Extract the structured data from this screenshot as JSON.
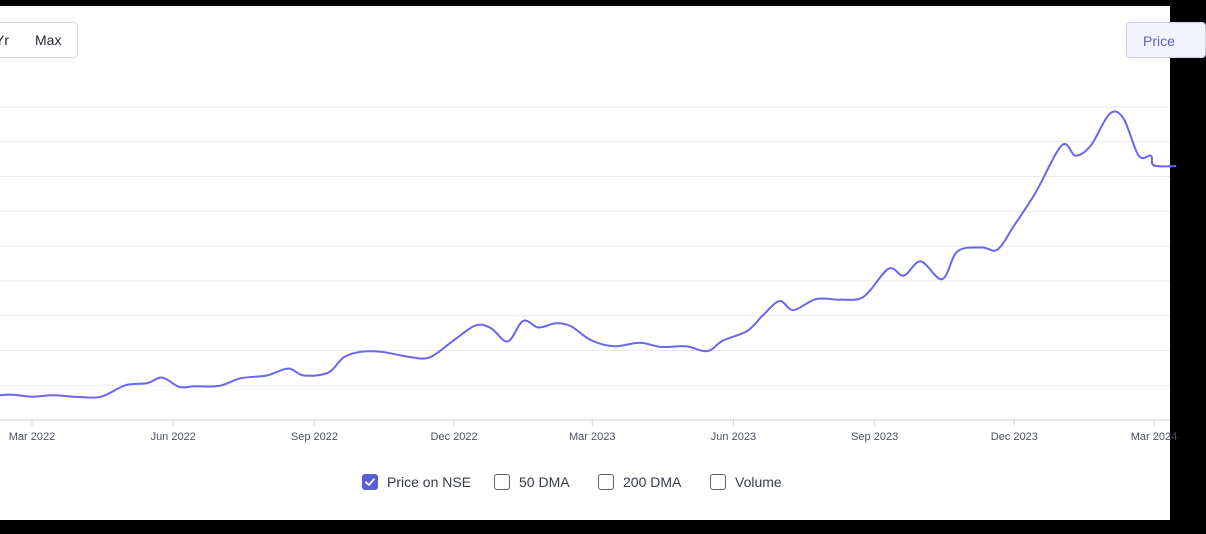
{
  "controls": {
    "range_buttons": [
      {
        "label": "Yr"
      },
      {
        "label": "Max"
      }
    ],
    "mode_button": {
      "label": "Price"
    }
  },
  "legend": [
    {
      "label": "Price on NSE",
      "checked": true
    },
    {
      "label": "50 DMA",
      "checked": false
    },
    {
      "label": "200 DMA",
      "checked": false
    },
    {
      "label": "Volume",
      "checked": false
    }
  ],
  "colors": {
    "line": "#6a66ee",
    "grid": "#e8e9ee",
    "checkbox": "#5b5fd6"
  },
  "chart_data": {
    "type": "line",
    "title": "",
    "xlabel": "",
    "ylabel": "",
    "grid": true,
    "legend_placement": "bottom-center",
    "x_ticks": [
      "Mar 2022",
      "Jun 2022",
      "Sep 2022",
      "Dec 2022",
      "Mar 2023",
      "Jun 2023",
      "Sep 2023",
      "Dec 2023",
      "Mar 2024"
    ],
    "y_range": [
      0,
      9
    ],
    "series": [
      {
        "name": "Price on NSE",
        "points": [
          [
            "2022-02-01",
            0.68
          ],
          [
            "2022-02-15",
            0.73
          ],
          [
            "2022-03-01",
            0.67
          ],
          [
            "2022-03-15",
            0.71
          ],
          [
            "2022-04-01",
            0.66
          ],
          [
            "2022-04-15",
            0.67
          ],
          [
            "2022-05-01",
            1.0
          ],
          [
            "2022-05-15",
            1.06
          ],
          [
            "2022-05-25",
            1.22
          ],
          [
            "2022-06-05",
            0.95
          ],
          [
            "2022-06-15",
            0.97
          ],
          [
            "2022-07-01",
            0.98
          ],
          [
            "2022-07-15",
            1.2
          ],
          [
            "2022-08-01",
            1.28
          ],
          [
            "2022-08-15",
            1.48
          ],
          [
            "2022-08-25",
            1.28
          ],
          [
            "2022-09-10",
            1.36
          ],
          [
            "2022-09-20",
            1.8
          ],
          [
            "2022-10-01",
            1.96
          ],
          [
            "2022-10-15",
            1.96
          ],
          [
            "2022-11-01",
            1.82
          ],
          [
            "2022-11-15",
            1.8
          ],
          [
            "2022-12-01",
            2.3
          ],
          [
            "2022-12-15",
            2.72
          ],
          [
            "2022-12-25",
            2.64
          ],
          [
            "2023-01-05",
            2.26
          ],
          [
            "2023-01-15",
            2.85
          ],
          [
            "2023-01-25",
            2.66
          ],
          [
            "2023-02-05",
            2.78
          ],
          [
            "2023-02-15",
            2.7
          ],
          [
            "2023-02-28",
            2.3
          ],
          [
            "2023-03-15",
            2.12
          ],
          [
            "2023-04-01",
            2.22
          ],
          [
            "2023-04-15",
            2.1
          ],
          [
            "2023-05-01",
            2.12
          ],
          [
            "2023-05-15",
            1.98
          ],
          [
            "2023-05-25",
            2.28
          ],
          [
            "2023-06-10",
            2.56
          ],
          [
            "2023-06-20",
            3.0
          ],
          [
            "2023-07-01",
            3.42
          ],
          [
            "2023-07-10",
            3.16
          ],
          [
            "2023-07-25",
            3.48
          ],
          [
            "2023-08-10",
            3.46
          ],
          [
            "2023-08-25",
            3.55
          ],
          [
            "2023-09-10",
            4.35
          ],
          [
            "2023-09-20",
            4.15
          ],
          [
            "2023-10-01",
            4.56
          ],
          [
            "2023-10-15",
            4.05
          ],
          [
            "2023-10-25",
            4.85
          ],
          [
            "2023-11-10",
            4.96
          ],
          [
            "2023-11-20",
            4.9
          ],
          [
            "2023-12-01",
            5.6
          ],
          [
            "2023-12-15",
            6.55
          ],
          [
            "2024-01-01",
            7.9
          ],
          [
            "2024-01-10",
            7.6
          ],
          [
            "2024-01-20",
            7.9
          ],
          [
            "2024-02-01",
            8.8
          ],
          [
            "2024-02-10",
            8.68
          ],
          [
            "2024-02-20",
            7.6
          ],
          [
            "2024-02-28",
            7.6
          ],
          [
            "2024-03-01",
            7.32
          ],
          [
            "2024-03-15",
            7.3
          ]
        ]
      }
    ]
  }
}
